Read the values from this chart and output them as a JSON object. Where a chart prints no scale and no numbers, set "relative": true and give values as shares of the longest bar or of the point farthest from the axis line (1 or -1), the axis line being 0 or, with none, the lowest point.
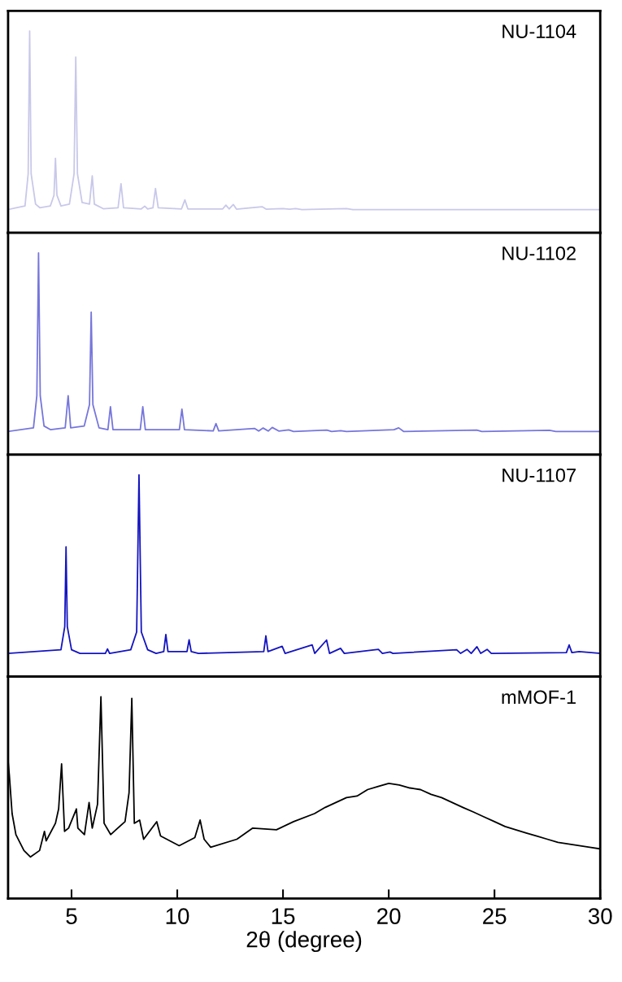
{
  "chart_data": [
    {
      "type": "line",
      "relative": true,
      "xlim": [
        2,
        30
      ],
      "tick_labels": false,
      "series": [
        {
          "name": "NU-1104",
          "color": "#c8c8ea",
          "x": [
            2,
            2.8,
            2.95,
            3.02,
            3.09,
            3.3,
            3.5,
            4.0,
            4.17,
            4.24,
            4.31,
            4.5,
            4.9,
            5.12,
            5.2,
            5.28,
            5.5,
            5.85,
            5.98,
            6.08,
            6.5,
            7.2,
            7.34,
            7.46,
            8.3,
            8.46,
            8.6,
            8.85,
            8.97,
            9.1,
            10.2,
            10.36,
            10.5,
            12.15,
            12.3,
            12.45,
            12.65,
            12.8,
            14.01,
            14.2,
            15.0,
            15.3,
            15.6,
            15.9,
            18.0,
            18.3,
            30
          ],
          "values": [
            0.115,
            0.133,
            0.292,
            1.0,
            0.292,
            0.142,
            0.124,
            0.133,
            0.186,
            0.369,
            0.186,
            0.133,
            0.142,
            0.292,
            0.871,
            0.292,
            0.15,
            0.142,
            0.282,
            0.142,
            0.119,
            0.124,
            0.243,
            0.124,
            0.118,
            0.132,
            0.118,
            0.124,
            0.219,
            0.124,
            0.118,
            0.163,
            0.118,
            0.118,
            0.137,
            0.118,
            0.14,
            0.117,
            0.129,
            0.117,
            0.12,
            0.117,
            0.12,
            0.115,
            0.12,
            0.115,
            0.115
          ]
        }
      ]
    },
    {
      "type": "line",
      "relative": true,
      "xlim": [
        2,
        30
      ],
      "tick_labels": false,
      "series": [
        {
          "name": "NU-1102",
          "color": "#7676dc",
          "x": [
            2,
            3.2,
            3.36,
            3.44,
            3.52,
            3.7,
            4.0,
            4.7,
            4.84,
            4.96,
            5.6,
            5.85,
            5.93,
            6.01,
            6.3,
            6.72,
            6.84,
            6.96,
            8.25,
            8.37,
            8.49,
            10.1,
            10.22,
            10.34,
            11.7,
            11.83,
            11.96,
            13.65,
            13.85,
            14.06,
            14.3,
            14.49,
            14.8,
            15.27,
            15.5,
            17.07,
            17.3,
            17.73,
            18,
            20.25,
            20.47,
            20.7,
            24.16,
            24.4,
            27.6,
            27.9,
            30
          ],
          "values": [
            0.115,
            0.133,
            0.292,
            1.0,
            0.292,
            0.142,
            0.124,
            0.133,
            0.292,
            0.133,
            0.142,
            0.248,
            0.706,
            0.248,
            0.133,
            0.124,
            0.238,
            0.124,
            0.124,
            0.238,
            0.124,
            0.124,
            0.226,
            0.124,
            0.118,
            0.154,
            0.118,
            0.13,
            0.117,
            0.132,
            0.117,
            0.135,
            0.117,
            0.123,
            0.115,
            0.122,
            0.115,
            0.119,
            0.115,
            0.124,
            0.133,
            0.115,
            0.122,
            0.115,
            0.121,
            0.115,
            0.115
          ]
        }
      ]
    },
    {
      "type": "line",
      "relative": true,
      "xlim": [
        2,
        30
      ],
      "tick_labels": false,
      "series": [
        {
          "name": "NU-1107",
          "color": "#1414c0",
          "x": [
            2,
            4.5,
            4.68,
            4.74,
            4.8,
            5.0,
            5.4,
            6.6,
            6.7,
            6.8,
            7.8,
            8.08,
            8.19,
            8.3,
            8.6,
            9.0,
            9.36,
            9.46,
            9.56,
            10.46,
            10.56,
            10.66,
            11.0,
            14.09,
            14.19,
            14.29,
            14.96,
            15.1,
            16.38,
            16.5,
            17.06,
            17.2,
            17.72,
            17.9,
            19.51,
            19.7,
            20.06,
            20.2,
            23.21,
            23.4,
            23.7,
            23.9,
            24.17,
            24.35,
            24.65,
            24.85,
            28.4,
            28.53,
            28.66,
            29,
            30
          ],
          "values": [
            0.115,
            0.133,
            0.248,
            0.643,
            0.248,
            0.133,
            0.115,
            0.115,
            0.137,
            0.115,
            0.133,
            0.221,
            1.0,
            0.221,
            0.133,
            0.115,
            0.124,
            0.209,
            0.124,
            0.124,
            0.182,
            0.124,
            0.115,
            0.124,
            0.202,
            0.124,
            0.15,
            0.115,
            0.157,
            0.115,
            0.181,
            0.115,
            0.14,
            0.115,
            0.135,
            0.115,
            0.122,
            0.115,
            0.133,
            0.115,
            0.135,
            0.115,
            0.148,
            0.115,
            0.135,
            0.115,
            0.119,
            0.157,
            0.119,
            0.124,
            0.115
          ]
        }
      ]
    },
    {
      "type": "line",
      "relative": true,
      "xlim": [
        2,
        30
      ],
      "tick_labels": "x",
      "xlabel": "2θ (degree)",
      "xticks": [
        5,
        10,
        15,
        20,
        25,
        30
      ],
      "series": [
        {
          "name": "mMOF-1",
          "color": "#000000",
          "x": [
            2.0,
            2.06,
            2.19,
            2.37,
            2.75,
            3.06,
            3.49,
            3.72,
            3.8,
            4.24,
            4.39,
            4.53,
            4.67,
            4.86,
            5.23,
            5.3,
            5.61,
            5.83,
            5.98,
            6.23,
            6.39,
            6.54,
            6.85,
            7.1,
            7.53,
            7.72,
            7.85,
            7.97,
            8.22,
            8.41,
            9.03,
            9.21,
            10.09,
            10.83,
            11.08,
            11.27,
            11.58,
            12.82,
            13.57,
            14.69,
            15.5,
            16.49,
            17.0,
            17.5,
            18.0,
            18.5,
            19.0,
            19.5,
            20.0,
            20.5,
            21.0,
            21.5,
            22.0,
            22.5,
            23.0,
            23.5,
            24.0,
            24.5,
            25.0,
            25.5,
            26.0,
            26.5,
            27.0,
            27.5,
            28.0,
            28.5,
            29.0,
            29.5,
            30.0
          ],
          "values": [
            0.683,
            0.611,
            0.421,
            0.317,
            0.238,
            0.206,
            0.238,
            0.333,
            0.286,
            0.373,
            0.444,
            0.667,
            0.333,
            0.349,
            0.444,
            0.349,
            0.317,
            0.476,
            0.349,
            0.468,
            1.0,
            0.373,
            0.317,
            0.341,
            0.381,
            0.524,
            0.992,
            0.373,
            0.389,
            0.294,
            0.381,
            0.31,
            0.262,
            0.302,
            0.389,
            0.294,
            0.254,
            0.294,
            0.349,
            0.341,
            0.381,
            0.421,
            0.452,
            0.476,
            0.5,
            0.508,
            0.54,
            0.556,
            0.571,
            0.563,
            0.548,
            0.54,
            0.516,
            0.5,
            0.476,
            0.452,
            0.429,
            0.405,
            0.381,
            0.357,
            0.341,
            0.325,
            0.31,
            0.294,
            0.278,
            0.27,
            0.262,
            0.254,
            0.246
          ]
        }
      ]
    }
  ]
}
